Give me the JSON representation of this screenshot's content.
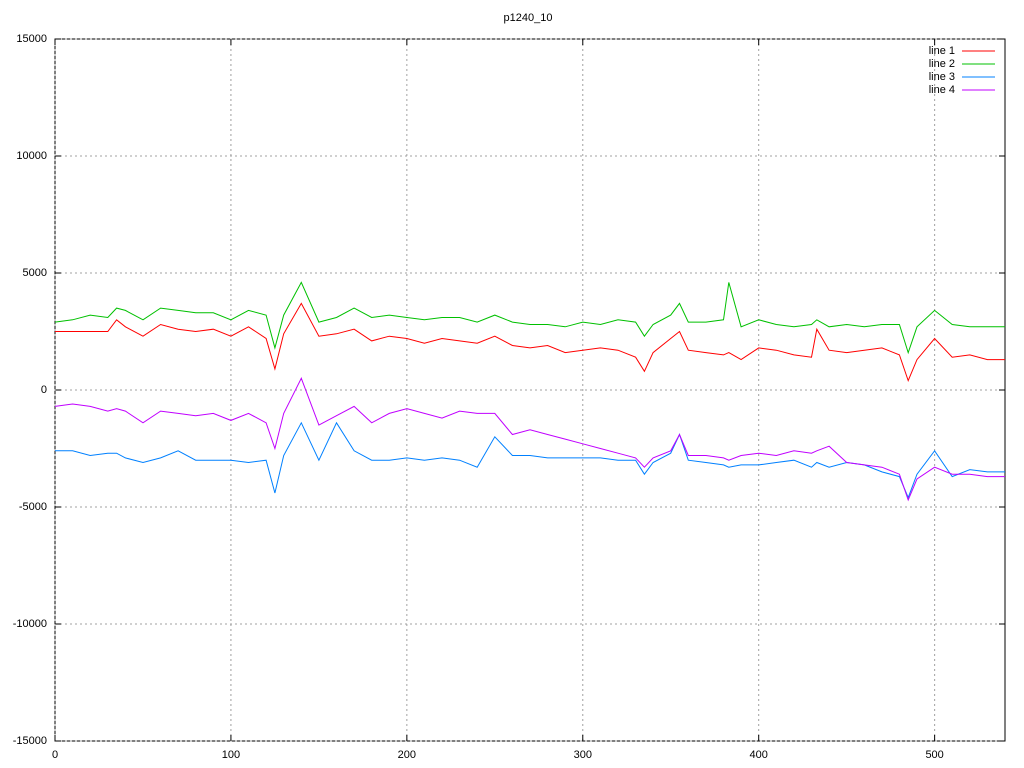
{
  "chart_data": {
    "type": "line",
    "title": "p1240_10",
    "x": [
      0,
      10,
      20,
      30,
      35,
      40,
      50,
      60,
      70,
      80,
      90,
      100,
      110,
      120,
      125,
      130,
      140,
      150,
      160,
      170,
      180,
      190,
      200,
      210,
      220,
      230,
      240,
      250,
      260,
      270,
      280,
      290,
      300,
      310,
      320,
      330,
      335,
      340,
      350,
      355,
      360,
      370,
      380,
      383,
      390,
      400,
      410,
      420,
      430,
      433,
      440,
      450,
      460,
      470,
      480,
      485,
      490,
      500,
      510,
      520,
      530,
      540
    ],
    "series": [
      {
        "name": "line 1",
        "color": "#ff0000",
        "values": [
          2500,
          2500,
          2500,
          2500,
          3000,
          2700,
          2300,
          2800,
          2600,
          2500,
          2600,
          2300,
          2700,
          2200,
          900,
          2400,
          3700,
          2300,
          2400,
          2600,
          2100,
          2300,
          2200,
          2000,
          2200,
          2100,
          2000,
          2300,
          1900,
          1800,
          1900,
          1600,
          1700,
          1800,
          1700,
          1400,
          800,
          1600,
          2200,
          2500,
          1700,
          1600,
          1500,
          1600,
          1300,
          1800,
          1700,
          1500,
          1400,
          2600,
          1700,
          1600,
          1700,
          1800,
          1500,
          400,
          1300,
          2200,
          1400,
          1500,
          1300,
          1300
        ]
      },
      {
        "name": "line 2",
        "color": "#00c000",
        "values": [
          2900,
          3000,
          3200,
          3100,
          3500,
          3400,
          3000,
          3500,
          3400,
          3300,
          3300,
          3000,
          3400,
          3200,
          1800,
          3200,
          4600,
          2900,
          3100,
          3500,
          3100,
          3200,
          3100,
          3000,
          3100,
          3100,
          2900,
          3200,
          2900,
          2800,
          2800,
          2700,
          2900,
          2800,
          3000,
          2900,
          2300,
          2800,
          3200,
          3700,
          2900,
          2900,
          3000,
          4600,
          2700,
          3000,
          2800,
          2700,
          2800,
          3000,
          2700,
          2800,
          2700,
          2800,
          2800,
          1600,
          2700,
          3400,
          2800,
          2700,
          2700,
          2700
        ]
      },
      {
        "name": "line 3",
        "color": "#0080ff",
        "values": [
          -2600,
          -2600,
          -2800,
          -2700,
          -2700,
          -2900,
          -3100,
          -2900,
          -2600,
          -3000,
          -3000,
          -3000,
          -3100,
          -3000,
          -4400,
          -2800,
          -1400,
          -3000,
          -1400,
          -2600,
          -3000,
          -3000,
          -2900,
          -3000,
          -2900,
          -3000,
          -3300,
          -2000,
          -2800,
          -2800,
          -2900,
          -2900,
          -2900,
          -2900,
          -3000,
          -3000,
          -3600,
          -3100,
          -2700,
          -1900,
          -3000,
          -3100,
          -3200,
          -3300,
          -3200,
          -3200,
          -3100,
          -3000,
          -3300,
          -3100,
          -3300,
          -3100,
          -3200,
          -3500,
          -3700,
          -4600,
          -3600,
          -2600,
          -3700,
          -3400,
          -3500,
          -3500
        ]
      },
      {
        "name": "line 4",
        "color": "#c000ff",
        "values": [
          -700,
          -600,
          -700,
          -900,
          -800,
          -900,
          -1400,
          -900,
          -1000,
          -1100,
          -1000,
          -1300,
          -1000,
          -1400,
          -2500,
          -1000,
          500,
          -1500,
          -1100,
          -700,
          -1400,
          -1000,
          -800,
          -1000,
          -1200,
          -900,
          -1000,
          -1000,
          -1900,
          -1700,
          -1900,
          -2100,
          -2300,
          -2500,
          -2700,
          -2900,
          -3300,
          -2900,
          -2600,
          -1900,
          -2800,
          -2800,
          -2900,
          -3000,
          -2800,
          -2700,
          -2800,
          -2600,
          -2700,
          -2600,
          -2400,
          -3100,
          -3200,
          -3300,
          -3600,
          -4700,
          -3800,
          -3300,
          -3600,
          -3600,
          -3700,
          -3700
        ]
      }
    ],
    "xlim": [
      0,
      540
    ],
    "xticks": [
      0,
      100,
      200,
      300,
      400,
      500
    ],
    "ylim": [
      -15000,
      15000
    ],
    "yticks": [
      -15000,
      -10000,
      -5000,
      0,
      5000,
      10000,
      15000
    ],
    "grid": true,
    "legend": "top-right"
  }
}
